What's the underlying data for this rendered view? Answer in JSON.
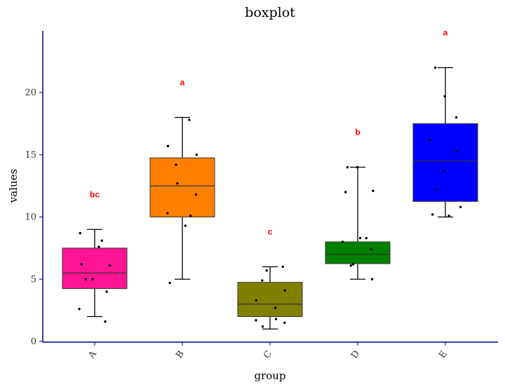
{
  "chart_data": {
    "type": "boxplot",
    "title": "boxplot",
    "xlabel": "group",
    "ylabel": "values",
    "ylim": [
      0,
      24.5
    ],
    "yticks": [
      0,
      5,
      10,
      15,
      20
    ],
    "categories": [
      "A",
      "B",
      "C",
      "D",
      "E"
    ],
    "groups": [
      {
        "name": "A",
        "color": "#ff1493",
        "min": 2,
        "q1": 4.25,
        "median": 5.5,
        "q3": 7.5,
        "max": 9,
        "sig": "bc",
        "points": [
          1.6,
          2.6,
          4.0,
          5.0,
          5.0,
          6.1,
          6.2,
          7.6,
          8.1,
          8.7
        ]
      },
      {
        "name": "B",
        "color": "#ff7f00",
        "min": 5,
        "q1": 10,
        "median": 12.5,
        "q3": 14.75,
        "max": 18,
        "sig": "a",
        "points": [
          4.7,
          9.3,
          10.1,
          10.3,
          11.8,
          12.7,
          14.2,
          15.0,
          15.7,
          17.8
        ]
      },
      {
        "name": "C",
        "color": "#808000",
        "min": 1,
        "q1": 2,
        "median": 3,
        "q3": 4.75,
        "max": 6,
        "sig": "c",
        "points": [
          1.2,
          1.5,
          1.7,
          1.8,
          2.7,
          3.3,
          4.1,
          4.9,
          5.7,
          6.0
        ]
      },
      {
        "name": "D",
        "color": "#008000",
        "min": 5,
        "q1": 6.25,
        "median": 7,
        "q3": 8,
        "max": 14,
        "sig": "b",
        "points": [
          5.0,
          6.1,
          6.2,
          7.4,
          8.0,
          8.3,
          8.3,
          12.0,
          12.1,
          14.0,
          14.0
        ]
      },
      {
        "name": "E",
        "color": "#0000ff",
        "min": 10,
        "q1": 11.25,
        "median": 14.5,
        "q3": 17.5,
        "max": 22,
        "sig": "a",
        "points": [
          10.1,
          10.2,
          10.8,
          12.2,
          13.7,
          15.3,
          16.2,
          18.0,
          19.7,
          22.0
        ]
      }
    ],
    "sig_color": "#ff0000",
    "axis_color": "#00008b"
  }
}
